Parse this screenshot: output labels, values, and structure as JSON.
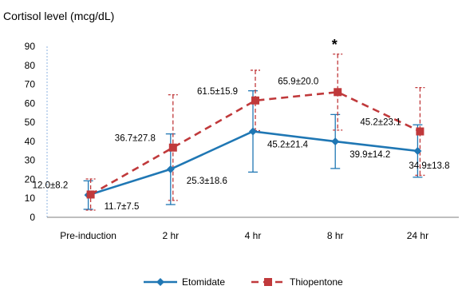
{
  "chart_data": {
    "type": "line",
    "title": "Cortisol level (mcg/dL)",
    "xlabel": "",
    "ylabel": "",
    "ylim": [
      0,
      90
    ],
    "yticks": [
      0,
      10,
      20,
      30,
      40,
      50,
      60,
      70,
      80,
      90
    ],
    "grid": false,
    "legend_position": "bottom",
    "categories": [
      "Pre-induction",
      "2 hr",
      "4 hr",
      "8 hr",
      "24 hr"
    ],
    "series": [
      {
        "name": "Etomidate",
        "color": "#1f77b4",
        "marker": "diamond",
        "line_style": "solid",
        "values": [
          11.7,
          25.3,
          45.2,
          39.9,
          34.9
        ],
        "errors": [
          7.5,
          18.6,
          21.4,
          14.2,
          13.8
        ],
        "labels": [
          "11.7±7.5",
          "25.3±18.6",
          "45.2±21.4",
          "39.9±14.2",
          "34.9±13.8"
        ]
      },
      {
        "name": "Thiopentone",
        "color": "#c0393b",
        "marker": "square",
        "line_style": "dashed",
        "values": [
          12.0,
          36.7,
          61.5,
          65.9,
          45.2
        ],
        "errors": [
          8.2,
          27.8,
          15.9,
          20.0,
          23.1
        ],
        "labels": [
          "12.0±8.2",
          "36.7±27.8",
          "61.5±15.9",
          "65.9±20.0",
          "45.2±23.1"
        ]
      }
    ],
    "annotations": [
      {
        "category": "8 hr",
        "text": "*"
      }
    ]
  }
}
